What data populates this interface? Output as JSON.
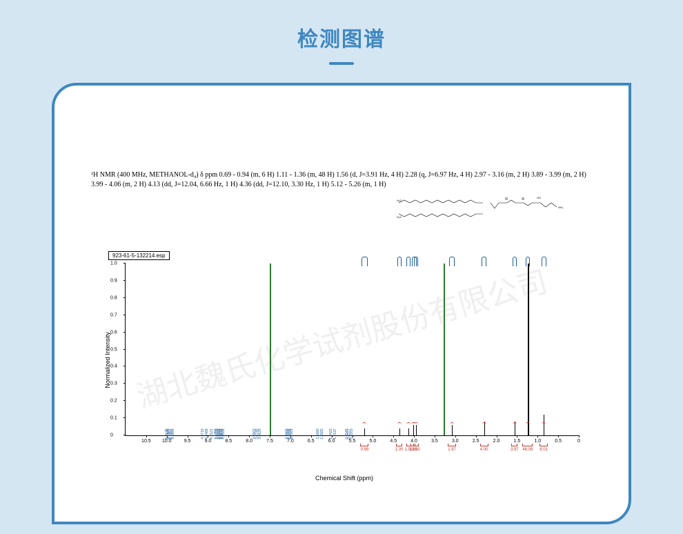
{
  "page_bg": "#d5e6f3",
  "panel_border": "#3f87c0",
  "panel_bg": "#ffffff",
  "title": {
    "text": "检测图谱",
    "color": "#3f87c0",
    "fontsize": 30,
    "underline_color": "#3f87c0"
  },
  "nmr_description": "¹H NMR (400 MHz, METHANOL-d₄) δ ppm 0.69 - 0.94 (m, 6 H) 1.11 - 1.36 (m, 48 H) 1.56 (d, J=3.91 Hz, 4 H) 2.28 (q, J=6.97 Hz, 4 H) 2.97 - 3.16 (m, 2 H) 3.89 - 3.99 (m, 2 H) 3.99 - 4.06 (m, 2 H) 4.13 (dd, J=12.04, 6.66 Hz, 1 H) 4.36 (dd, J=12.10, 3.30 Hz, 1 H) 5.12 - 5.26 (m, 1 H)",
  "watermark_text": "湖北魏氏化学试剂股份有限公司",
  "chart": {
    "type": "nmr-spectrum",
    "box_title": "923-61-5-132214.esp",
    "y_axis_label": "Normalized Intensity",
    "x_axis_label": "Chemical Shift (ppm)",
    "xlim": [
      11.0,
      0.0
    ],
    "ylim": [
      0.0,
      1.0
    ],
    "xticks": [
      10.5,
      10.0,
      9.5,
      9.0,
      8.5,
      8.0,
      7.5,
      7.0,
      6.5,
      6.0,
      5.5,
      5.0,
      4.5,
      4.0,
      3.5,
      3.0,
      2.5,
      2.0,
      1.5,
      1.0,
      0.5,
      0
    ],
    "yticks": [
      0,
      0.1,
      0.2,
      0.3,
      0.4,
      0.5,
      0.6,
      0.7,
      0.8,
      0.9,
      1.0
    ],
    "xtick_fontsize": 7,
    "ytick_fontsize": 7,
    "solvent_peak": {
      "ppm": 7.5,
      "height": 1.0,
      "color": "#2a7a2a"
    },
    "peaks": [
      {
        "ppm": 5.2,
        "height": 0.04,
        "color": "#000000"
      },
      {
        "ppm": 4.36,
        "height": 0.04,
        "color": "#000000"
      },
      {
        "ppm": 4.13,
        "height": 0.04,
        "color": "#000000"
      },
      {
        "ppm": 4.02,
        "height": 0.06,
        "color": "#000000"
      },
      {
        "ppm": 3.95,
        "height": 0.06,
        "color": "#000000"
      },
      {
        "ppm": 3.28,
        "height": 1.0,
        "color": "#2a7a2a"
      },
      {
        "ppm": 3.08,
        "height": 0.06,
        "color": "#000000"
      },
      {
        "ppm": 2.3,
        "height": 0.08,
        "color": "#000000"
      },
      {
        "ppm": 1.56,
        "height": 0.08,
        "color": "#000000"
      },
      {
        "ppm": 1.24,
        "height": 1.0,
        "color": "#000000"
      },
      {
        "ppm": 0.85,
        "height": 0.12,
        "color": "#000000"
      }
    ],
    "peak_value_groups": [
      {
        "center_ppm": 5.2,
        "width": 0.15,
        "labels": [
          "5.2126",
          "5.2036",
          "5.1967",
          "5.1897",
          "5.1826"
        ]
      },
      {
        "center_ppm": 4.36,
        "width": 0.1,
        "labels": [
          "4.3719",
          "4.3489"
        ]
      },
      {
        "center_ppm": 4.13,
        "width": 0.1,
        "labels": [
          "4.1521",
          "4.1355"
        ]
      },
      {
        "center_ppm": 4.0,
        "width": 0.12,
        "labels": [
          "4.0209",
          "4.0094",
          "3.9931"
        ]
      },
      {
        "center_ppm": 3.95,
        "width": 0.1,
        "labels": [
          "3.9832",
          "3.9672",
          "3.9532"
        ]
      },
      {
        "center_ppm": 3.08,
        "width": 0.12,
        "labels": [
          "3.0863",
          "3.0745",
          "3.0625"
        ]
      },
      {
        "center_ppm": 2.3,
        "width": 0.12,
        "labels": [
          "2.3062",
          "2.2889",
          "2.2695",
          "2.2521"
        ]
      },
      {
        "center_ppm": 1.56,
        "width": 0.1,
        "labels": [
          "1.5680",
          "1.5582"
        ]
      },
      {
        "center_ppm": 1.24,
        "width": 0.1,
        "labels": [
          "1.2422",
          "1.2197"
        ]
      },
      {
        "center_ppm": 0.85,
        "width": 0.12,
        "labels": [
          "0.8545",
          "0.8377",
          "0.8203"
        ]
      }
    ],
    "integrals": [
      {
        "ppm": 5.2,
        "value": "0.99",
        "width": 0.2
      },
      {
        "ppm": 4.36,
        "value": "1.00",
        "width": 0.15
      },
      {
        "ppm": 4.13,
        "value": "1.01",
        "width": 0.12
      },
      {
        "ppm": 4.02,
        "value": "1.95",
        "width": 0.12
      },
      {
        "ppm": 3.95,
        "value": "2.00",
        "width": 0.12
      },
      {
        "ppm": 3.08,
        "value": "1.97",
        "width": 0.2
      },
      {
        "ppm": 2.3,
        "value": "4.00",
        "width": 0.2
      },
      {
        "ppm": 1.56,
        "value": "3.97",
        "width": 0.15
      },
      {
        "ppm": 1.24,
        "value": "48.06",
        "width": 0.25
      },
      {
        "ppm": 0.85,
        "value": "6.01",
        "width": 0.2
      }
    ],
    "integral_color": "#c0392b",
    "peak_label_color": "#1a5c9c"
  }
}
